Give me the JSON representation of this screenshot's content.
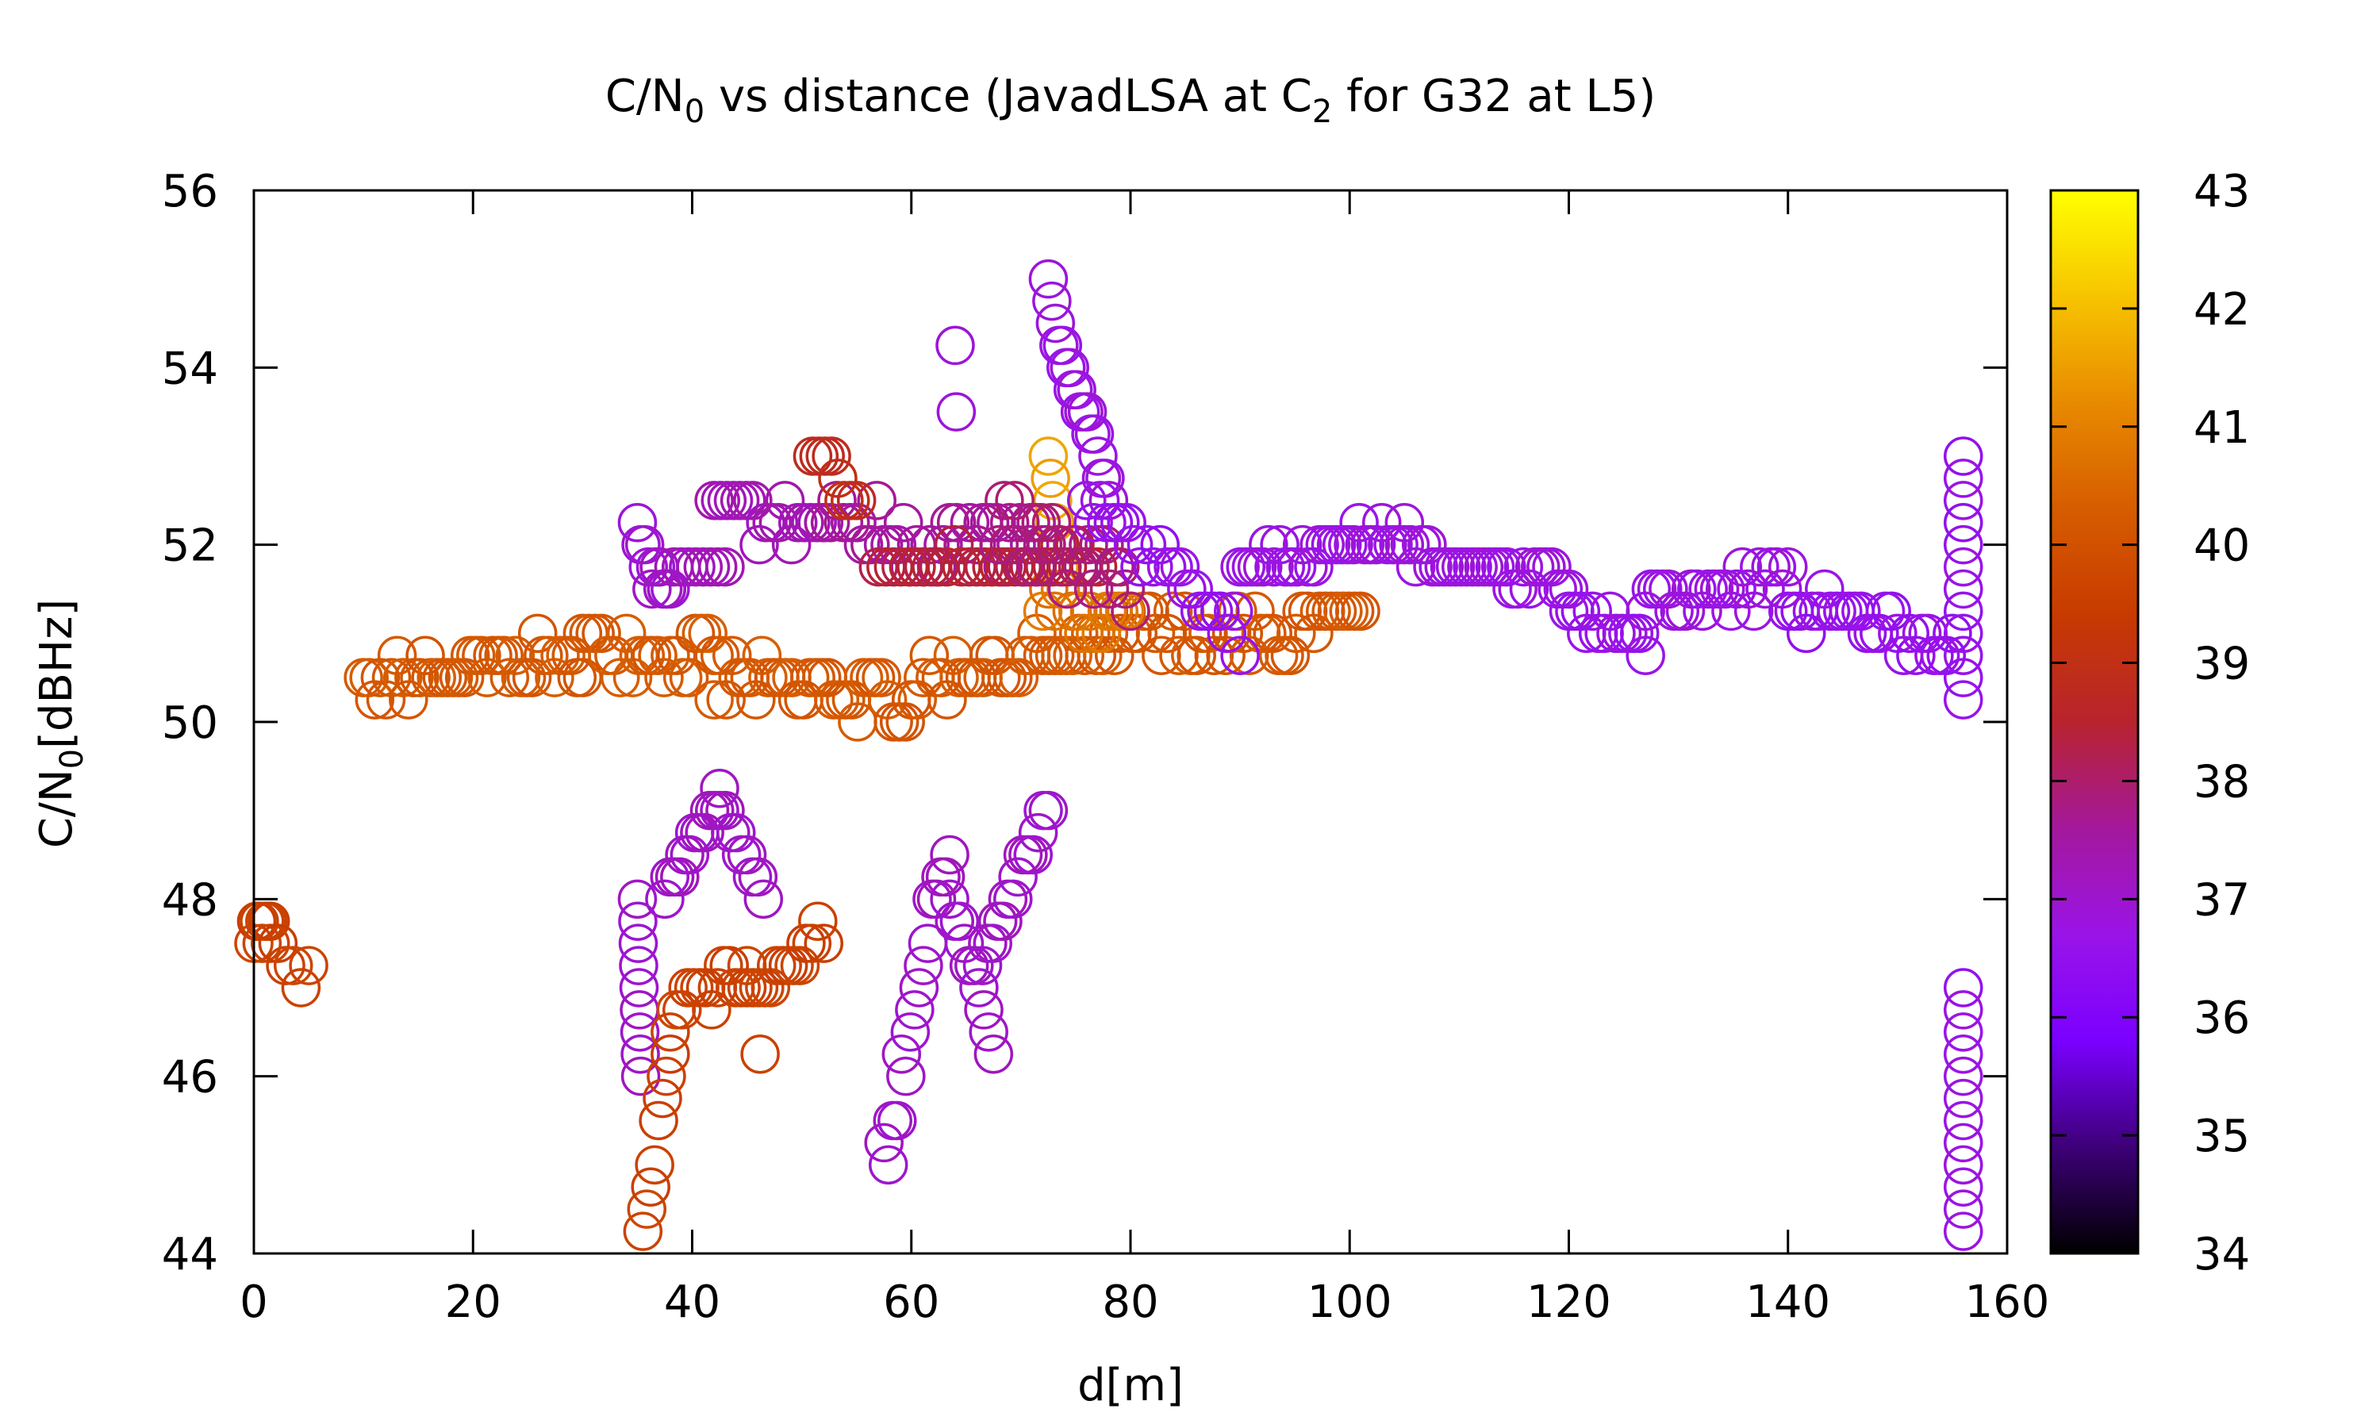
{
  "chart_data": {
    "type": "scatter",
    "title": {
      "main": "C/N",
      "sub1": "0",
      "mid": " vs distance (JavadLSA at C",
      "sub2": "2",
      "tail": " for G32 at L5)"
    },
    "xlabel": "d[m]",
    "ylabel": {
      "main": "C/N",
      "sub": "0",
      "tail": "[dBHz]"
    },
    "xlim": [
      0,
      160
    ],
    "ylim": [
      44,
      56
    ],
    "xticks": [
      "0",
      "20",
      "40",
      "60",
      "80",
      "100",
      "120",
      "140",
      "160"
    ],
    "yticks": [
      "44",
      "46",
      "48",
      "50",
      "52",
      "54",
      "56"
    ],
    "colorbar": {
      "range": [
        34,
        43
      ],
      "ticks": [
        "34",
        "35",
        "36",
        "37",
        "38",
        "39",
        "40",
        "41",
        "42",
        "43"
      ],
      "palette": [
        "#000000",
        "#3d0078",
        "#7a00ff",
        "#9a14e8",
        "#a4189b",
        "#b8232e",
        "#c73a00",
        "#d65c00",
        "#e88a00",
        "#f7c400",
        "#ffff00"
      ]
    },
    "grid": false,
    "segments": [
      {
        "x0": 0,
        "x1": 1.5,
        "y0": 47.8,
        "y1": 47.6,
        "c": 39.6,
        "n": 7,
        "j": 0.25
      },
      {
        "x0": 1.5,
        "x1": 5,
        "y0": 47.5,
        "y1": 47.0,
        "c": 39.6,
        "n": 6,
        "j": 0.2
      },
      {
        "x0": 10,
        "x1": 30,
        "y0": 50.4,
        "y1": 50.7,
        "c": 40.2,
        "n": 40,
        "j": 0.25
      },
      {
        "x0": 30,
        "x1": 42,
        "y0": 50.9,
        "y1": 50.7,
        "c": 40.2,
        "n": 22,
        "j": 0.25
      },
      {
        "x0": 42,
        "x1": 60,
        "y0": 50.5,
        "y1": 50.2,
        "c": 40.2,
        "n": 34,
        "j": 0.25
      },
      {
        "x0": 60,
        "x1": 78,
        "y0": 50.5,
        "y1": 50.8,
        "c": 40.2,
        "n": 34,
        "j": 0.25
      },
      {
        "x0": 78,
        "x1": 101,
        "y0": 50.9,
        "y1": 51.0,
        "c": 40.2,
        "n": 44,
        "j": 0.3
      },
      {
        "x0": 72,
        "x1": 80,
        "y0": 51.4,
        "y1": 51.1,
        "c": 40.8,
        "n": 16,
        "j": 0.25
      },
      {
        "x0": 72.5,
        "x1": 73.5,
        "y0": 53.0,
        "y1": 51.8,
        "c": 41.6,
        "n": 6,
        "j": 0.1
      },
      {
        "x0": 35,
        "x1": 38,
        "y0": 52.3,
        "y1": 51.2,
        "c": 37.0,
        "n": 10,
        "j": 0.2
      },
      {
        "x0": 37,
        "x1": 43,
        "y0": 51.7,
        "y1": 51.7,
        "c": 37.2,
        "n": 10,
        "j": 0.1
      },
      {
        "x0": 42,
        "x1": 52,
        "y0": 52.4,
        "y1": 52.2,
        "c": 37.3,
        "n": 18,
        "j": 0.25
      },
      {
        "x0": 52,
        "x1": 72,
        "y0": 52.3,
        "y1": 51.9,
        "c": 37.6,
        "n": 34,
        "j": 0.35
      },
      {
        "x0": 57,
        "x1": 77,
        "y0": 51.8,
        "y1": 51.8,
        "c": 38.4,
        "n": 30,
        "j": 0.1
      },
      {
        "x0": 51,
        "x1": 55,
        "y0": 53.2,
        "y1": 52.4,
        "c": 38.9,
        "n": 8,
        "j": 0.1
      },
      {
        "x0": 68,
        "x1": 80,
        "y0": 52.2,
        "y1": 51.6,
        "c": 37.9,
        "n": 26,
        "j": 0.4
      },
      {
        "x0": 64,
        "x1": 64.1,
        "y0": 54.2,
        "y1": 53.5,
        "c": 37.0,
        "n": 2,
        "j": 0.0
      },
      {
        "x0": 72.5,
        "x1": 78,
        "y0": 54.8,
        "y1": 52.6,
        "c": 36.8,
        "n": 18,
        "j": 0.1
      },
      {
        "x0": 76,
        "x1": 90,
        "y0": 52.5,
        "y1": 51.0,
        "c": 36.6,
        "n": 24,
        "j": 0.15
      },
      {
        "x0": 90,
        "x1": 105,
        "y0": 51.8,
        "y1": 52.1,
        "c": 36.8,
        "n": 30,
        "j": 0.15
      },
      {
        "x0": 105,
        "x1": 120,
        "y0": 51.9,
        "y1": 51.6,
        "c": 36.8,
        "n": 30,
        "j": 0.12
      },
      {
        "x0": 120,
        "x1": 127,
        "y0": 51.3,
        "y1": 50.9,
        "c": 36.7,
        "n": 14,
        "j": 0.15
      },
      {
        "x0": 127,
        "x1": 140,
        "y0": 51.3,
        "y1": 51.6,
        "c": 36.8,
        "n": 26,
        "j": 0.2
      },
      {
        "x0": 140,
        "x1": 155,
        "y0": 51.3,
        "y1": 50.9,
        "c": 36.6,
        "n": 28,
        "j": 0.2
      },
      {
        "x0": 156,
        "x1": 156,
        "y0": 53.0,
        "y1": 50.3,
        "c": 36.6,
        "n": 12,
        "j": 0.0
      },
      {
        "x0": 156,
        "x1": 156,
        "y0": 47.0,
        "y1": 44.2,
        "c": 36.7,
        "n": 12,
        "j": 0.0
      },
      {
        "x0": 35,
        "x1": 35.3,
        "y0": 48.0,
        "y1": 46.0,
        "c": 37.1,
        "n": 9,
        "j": 0.0
      },
      {
        "x0": 35.5,
        "x1": 38,
        "y0": 44.2,
        "y1": 46.2,
        "c": 39.6,
        "n": 8,
        "j": 0.1
      },
      {
        "x0": 38,
        "x1": 45,
        "y0": 46.7,
        "y1": 47.2,
        "c": 39.6,
        "n": 14,
        "j": 0.15
      },
      {
        "x0": 45,
        "x1": 52,
        "y0": 47.0,
        "y1": 47.5,
        "c": 39.6,
        "n": 14,
        "j": 0.2
      },
      {
        "x0": 46.2,
        "x1": 46.3,
        "y0": 46.2,
        "y1": 46.2,
        "c": 39.6,
        "n": 1,
        "j": 0.0
      },
      {
        "x0": 37.5,
        "x1": 42.5,
        "y0": 48.0,
        "y1": 49.2,
        "c": 37.1,
        "n": 12,
        "j": 0.1
      },
      {
        "x0": 42.5,
        "x1": 46.5,
        "y0": 49.0,
        "y1": 48.0,
        "c": 37.1,
        "n": 9,
        "j": 0.1
      },
      {
        "x0": 57.5,
        "x1": 63.5,
        "y0": 45.0,
        "y1": 48.7,
        "c": 37.1,
        "n": 16,
        "j": 0.25
      },
      {
        "x0": 63.5,
        "x1": 67.5,
        "y0": 48.0,
        "y1": 46.3,
        "c": 37.1,
        "n": 10,
        "j": 0.2
      },
      {
        "x0": 66.5,
        "x1": 72.5,
        "y0": 47.3,
        "y1": 49.0,
        "c": 37.1,
        "n": 14,
        "j": 0.1
      }
    ]
  }
}
